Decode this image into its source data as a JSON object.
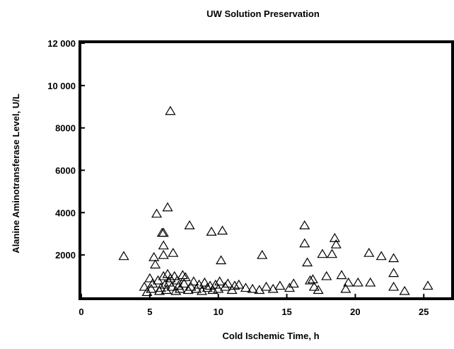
{
  "chart_data": {
    "type": "scatter",
    "title": "UW Solution Preservation",
    "xlabel": "Cold Ischemic Time, h",
    "ylabel": "Alanine Aminotransferase Level, U/L",
    "xlim": [
      0,
      27
    ],
    "ylim": [
      0,
      12000
    ],
    "x_ticks": [
      0,
      5,
      10,
      15,
      20,
      25
    ],
    "x_tick_labels": [
      "0",
      "5",
      "10",
      "15",
      "20",
      "25"
    ],
    "y_ticks": [
      2000,
      4000,
      6000,
      8000,
      10000,
      12000
    ],
    "y_tick_labels": [
      "2000",
      "4000",
      "6000",
      "8000",
      "10 000",
      "12 000"
    ],
    "grid": false,
    "marker": "open-triangle",
    "points": [
      [
        3.1,
        1950
      ],
      [
        4.6,
        500
      ],
      [
        4.8,
        250
      ],
      [
        5.0,
        900
      ],
      [
        5.1,
        400
      ],
      [
        5.2,
        650
      ],
      [
        5.3,
        1900
      ],
      [
        5.4,
        1550
      ],
      [
        5.5,
        3950
      ],
      [
        5.6,
        800
      ],
      [
        5.7,
        300
      ],
      [
        5.8,
        450
      ],
      [
        5.9,
        3050
      ],
      [
        6.0,
        3050
      ],
      [
        6.0,
        2450
      ],
      [
        6.0,
        2000
      ],
      [
        6.0,
        1000
      ],
      [
        6.1,
        600
      ],
      [
        6.2,
        350
      ],
      [
        6.3,
        4250
      ],
      [
        6.3,
        1100
      ],
      [
        6.4,
        700
      ],
      [
        6.5,
        8800
      ],
      [
        6.5,
        900
      ],
      [
        6.6,
        500
      ],
      [
        6.7,
        2100
      ],
      [
        6.8,
        1000
      ],
      [
        6.9,
        300
      ],
      [
        7.0,
        800
      ],
      [
        7.1,
        550
      ],
      [
        7.2,
        400
      ],
      [
        7.4,
        1050
      ],
      [
        7.5,
        650
      ],
      [
        7.6,
        950
      ],
      [
        7.8,
        350
      ],
      [
        7.9,
        3400
      ],
      [
        8.0,
        500
      ],
      [
        8.2,
        750
      ],
      [
        8.4,
        400
      ],
      [
        8.6,
        600
      ],
      [
        8.8,
        300
      ],
      [
        9.0,
        700
      ],
      [
        9.2,
        450
      ],
      [
        9.4,
        550
      ],
      [
        9.5,
        3100
      ],
      [
        9.6,
        350
      ],
      [
        9.8,
        600
      ],
      [
        10.0,
        400
      ],
      [
        10.1,
        750
      ],
      [
        10.2,
        1750
      ],
      [
        10.3,
        3150
      ],
      [
        10.5,
        500
      ],
      [
        10.7,
        650
      ],
      [
        11.0,
        350
      ],
      [
        11.2,
        550
      ],
      [
        11.5,
        600
      ],
      [
        12.0,
        450
      ],
      [
        12.5,
        400
      ],
      [
        13.0,
        350
      ],
      [
        13.2,
        2000
      ],
      [
        13.5,
        500
      ],
      [
        14.0,
        400
      ],
      [
        14.5,
        550
      ],
      [
        15.2,
        450
      ],
      [
        15.5,
        650
      ],
      [
        16.3,
        3400
      ],
      [
        16.3,
        2550
      ],
      [
        16.5,
        1650
      ],
      [
        16.7,
        800
      ],
      [
        16.9,
        850
      ],
      [
        17.0,
        500
      ],
      [
        17.3,
        350
      ],
      [
        17.6,
        2050
      ],
      [
        17.9,
        1000
      ],
      [
        18.3,
        2050
      ],
      [
        18.5,
        2800
      ],
      [
        18.6,
        2500
      ],
      [
        19.0,
        1050
      ],
      [
        19.3,
        400
      ],
      [
        19.5,
        700
      ],
      [
        20.2,
        700
      ],
      [
        21.0,
        2100
      ],
      [
        21.1,
        700
      ],
      [
        21.9,
        1950
      ],
      [
        22.8,
        1850
      ],
      [
        22.8,
        1150
      ],
      [
        22.8,
        500
      ],
      [
        23.6,
        300
      ],
      [
        25.3,
        550
      ]
    ]
  }
}
